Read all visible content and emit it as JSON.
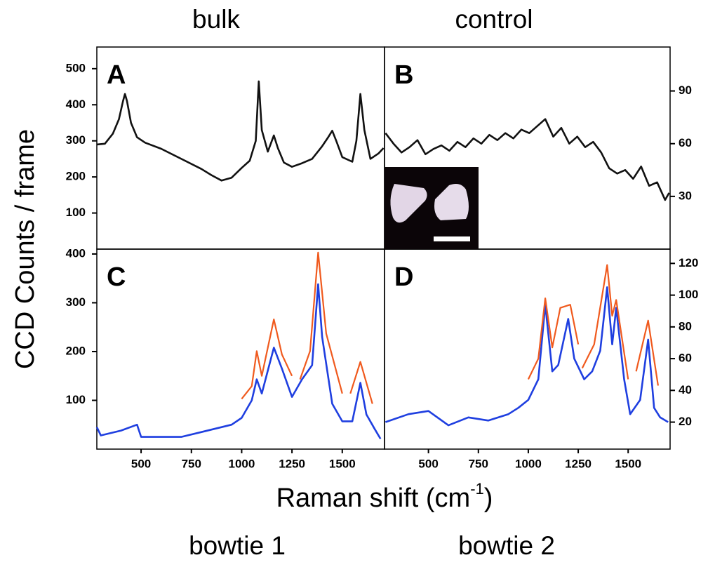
{
  "headings": {
    "top": [
      "bulk",
      "control"
    ],
    "bottom": [
      "bowtie 1",
      "bowtie 2"
    ]
  },
  "ylabel": "CCD Counts / frame",
  "xlabel": {
    "text": "Raman shift (cm",
    "superscript": "-1",
    "end": ")"
  },
  "chart_data": [
    {
      "type": "line",
      "title": "A",
      "y_axis_position": "left",
      "xlim": [
        280,
        1710
      ],
      "ylim": [
        0,
        560
      ],
      "yticks": [
        100,
        200,
        300,
        400,
        500
      ],
      "series": [
        {
          "color": "#111111",
          "x": [
            280,
            320,
            360,
            390,
            410,
            420,
            430,
            450,
            480,
            520,
            600,
            700,
            800,
            850,
            900,
            950,
            1000,
            1040,
            1070,
            1085,
            1100,
            1130,
            1160,
            1180,
            1210,
            1250,
            1300,
            1350,
            1400,
            1430,
            1450,
            1470,
            1500,
            1550,
            1570,
            1590,
            1610,
            1640,
            1680,
            1705
          ],
          "values": [
            290,
            292,
            320,
            360,
            410,
            430,
            410,
            350,
            310,
            295,
            278,
            250,
            222,
            205,
            190,
            198,
            225,
            245,
            300,
            465,
            330,
            270,
            315,
            280,
            240,
            228,
            238,
            250,
            285,
            310,
            328,
            300,
            255,
            242,
            300,
            430,
            330,
            250,
            265,
            280
          ]
        }
      ]
    },
    {
      "type": "line",
      "title": "B",
      "y_axis_position": "right",
      "xlim": [
        280,
        1710
      ],
      "ylim": [
        0,
        115
      ],
      "yticks": [
        30,
        60,
        90
      ],
      "series": [
        {
          "color": "#111111",
          "x": [
            285,
            325,
            365,
            405,
            445,
            485,
            525,
            565,
            605,
            645,
            685,
            725,
            765,
            805,
            845,
            885,
            925,
            965,
            1005,
            1045,
            1085,
            1125,
            1165,
            1205,
            1245,
            1285,
            1325,
            1365,
            1405,
            1445,
            1485,
            1525,
            1565,
            1605,
            1645,
            1685,
            1705
          ],
          "values": [
            66,
            60,
            55,
            58,
            62,
            54,
            57,
            59,
            56,
            61,
            58,
            63,
            60,
            65,
            62,
            66,
            63,
            68,
            66,
            70,
            74,
            64,
            69,
            60,
            64,
            58,
            61,
            55,
            46,
            43,
            45,
            40,
            47,
            36,
            38,
            28,
            32
          ]
        }
      ]
    },
    {
      "type": "line",
      "title": "C",
      "y_axis_position": "left",
      "xlim": [
        280,
        1710
      ],
      "ylim": [
        0,
        410
      ],
      "yticks": [
        100,
        200,
        300,
        400
      ],
      "xticks": [
        500,
        750,
        1000,
        1250,
        1500
      ],
      "series": [
        {
          "color": "#1f3fe0",
          "x": [
            280,
            300,
            400,
            480,
            500,
            600,
            700,
            800,
            950,
            1000,
            1050,
            1075,
            1100,
            1160,
            1200,
            1250,
            1300,
            1350,
            1380,
            1400,
            1450,
            1500,
            1550,
            1590,
            1620,
            1660,
            1690
          ],
          "values": [
            45,
            28,
            38,
            50,
            25,
            25,
            25,
            35,
            50,
            64,
            100,
            143,
            114,
            208,
            165,
            107,
            143,
            172,
            338,
            230,
            93,
            57,
            57,
            136,
            71,
            42,
            21
          ]
        },
        {
          "color": "#f05a1e",
          "x": [
            1000,
            1050,
            1075,
            1100,
            1160,
            1200,
            1250
          ],
          "values": [
            103,
            129,
            201,
            150,
            266,
            194,
            150
          ]
        },
        {
          "color": "#f05a1e",
          "x": [
            1290,
            1340,
            1380,
            1420,
            1500
          ],
          "values": [
            143,
            201,
            403,
            237,
            114
          ]
        },
        {
          "color": "#f05a1e",
          "x": [
            1540,
            1590,
            1650
          ],
          "values": [
            114,
            179,
            93
          ]
        }
      ]
    },
    {
      "type": "line",
      "title": "D",
      "y_axis_position": "right",
      "xlim": [
        280,
        1710
      ],
      "ylim": [
        3,
        129
      ],
      "yticks": [
        20,
        40,
        60,
        80,
        100,
        120
      ],
      "xticks": [
        500,
        750,
        1000,
        1250,
        1500
      ],
      "series": [
        {
          "color": "#1f3fe0",
          "x": [
            285,
            400,
            500,
            600,
            700,
            800,
            900,
            950,
            1000,
            1050,
            1085,
            1120,
            1150,
            1200,
            1230,
            1280,
            1320,
            1360,
            1395,
            1420,
            1440,
            1480,
            1510,
            1560,
            1600,
            1630,
            1660,
            1700
          ],
          "values": [
            20,
            25,
            27,
            18,
            23,
            21,
            25,
            29,
            34,
            47,
            94,
            52,
            56,
            85,
            60,
            47,
            52,
            65,
            105,
            69,
            92,
            47,
            25,
            34,
            72,
            29,
            23,
            20
          ]
        },
        {
          "color": "#f05a1e",
          "x": [
            1000,
            1050,
            1085,
            1120,
            1160,
            1210,
            1250
          ],
          "values": [
            47,
            60,
            98,
            67,
            92,
            94,
            69
          ]
        },
        {
          "color": "#f05a1e",
          "x": [
            1270,
            1330,
            1395,
            1420,
            1440,
            1500
          ],
          "values": [
            54,
            69,
            119,
            87,
            97,
            47
          ]
        },
        {
          "color": "#f05a1e",
          "x": [
            1540,
            1600,
            1650
          ],
          "values": [
            52,
            84,
            43
          ]
        }
      ]
    }
  ]
}
